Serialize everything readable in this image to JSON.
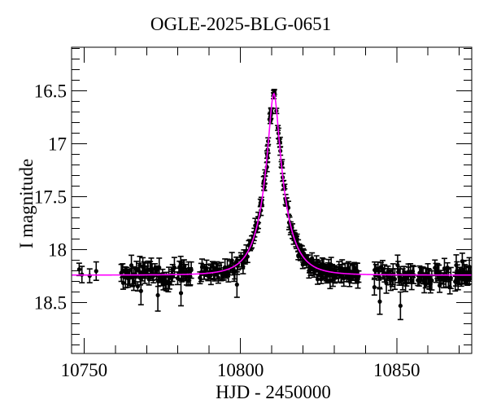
{
  "chart_data": {
    "type": "scatter",
    "title": "OGLE-2025-BLG-0651",
    "xlabel": "HJD - 2450000",
    "ylabel": "I magnitude",
    "x_range": [
      10746,
      10874
    ],
    "y_range": [
      16.09,
      18.98
    ],
    "y_axis_inverted": true,
    "x_major_ticks": [
      10750,
      10800,
      10850
    ],
    "x_minor_step": 10,
    "y_major_ticks": [
      16.5,
      17,
      17.5,
      18,
      18.5
    ],
    "y_major_tick_labels": [
      "16.5",
      "17",
      "17.5",
      "18",
      "18.5"
    ],
    "y_minor_step": 0.1,
    "grid": false,
    "legend": null,
    "colors": {
      "background": "#ffffff",
      "frame": "#000000",
      "text": "#000000",
      "data_points": "#000000",
      "model_curve": "#ff00ff"
    },
    "model": {
      "type": "paczynski-microlensing",
      "t0": 10810.7,
      "tE": 7.0,
      "u0": 0.21,
      "I_baseline": 18.24,
      "I_peak": 16.53
    },
    "random_seed": 17,
    "point_clusters": [
      {
        "t_start": 10747.0,
        "t_end": 10755.5,
        "n": 4,
        "mag_scatter": 0.03,
        "err_min": 0.05,
        "err_max": 0.1
      },
      {
        "t_start": 10761.8,
        "t_end": 10779.0,
        "n": 50,
        "mag_scatter": 0.045,
        "err_min": 0.04,
        "err_max": 0.1
      },
      {
        "t_start": 10779.8,
        "t_end": 10784.5,
        "n": 16,
        "mag_scatter": 0.045,
        "err_min": 0.04,
        "err_max": 0.09
      },
      {
        "t_start": 10787.0,
        "t_end": 10799.5,
        "n": 36,
        "mag_scatter": 0.04,
        "err_min": 0.04,
        "err_max": 0.09
      },
      {
        "t_start": 10800.0,
        "t_end": 10806.0,
        "n": 22,
        "mag_scatter": 0.035,
        "err_min": 0.035,
        "err_max": 0.07
      },
      {
        "t_start": 10806.3,
        "t_end": 10806.9,
        "n": 4,
        "mag_scatter": 0.03,
        "err_min": 0.03,
        "err_max": 0.05
      },
      {
        "t_start": 10807.4,
        "t_end": 10807.9,
        "n": 5,
        "mag_scatter": 0.03,
        "err_min": 0.03,
        "err_max": 0.05
      },
      {
        "t_start": 10808.4,
        "t_end": 10808.9,
        "n": 5,
        "mag_scatter": 0.028,
        "err_min": 0.025,
        "err_max": 0.045
      },
      {
        "t_start": 10809.5,
        "t_end": 10809.9,
        "n": 5,
        "mag_scatter": 0.025,
        "err_min": 0.02,
        "err_max": 0.04
      },
      {
        "t_start": 10810.6,
        "t_end": 10810.9,
        "n": 3,
        "mag_scatter": 0.015,
        "err_min": 0.015,
        "err_max": 0.03
      },
      {
        "t_start": 10811.5,
        "t_end": 10815.0,
        "n": 14,
        "mag_scatter": 0.03,
        "err_min": 0.02,
        "err_max": 0.05
      },
      {
        "t_start": 10815.2,
        "t_end": 10824.0,
        "n": 40,
        "mag_scatter": 0.035,
        "err_min": 0.03,
        "err_max": 0.07
      },
      {
        "t_start": 10824.2,
        "t_end": 10831.0,
        "n": 34,
        "mag_scatter": 0.04,
        "err_min": 0.035,
        "err_max": 0.08
      },
      {
        "t_start": 10831.2,
        "t_end": 10838.0,
        "n": 26,
        "mag_scatter": 0.045,
        "err_min": 0.04,
        "err_max": 0.09
      },
      {
        "t_start": 10842.5,
        "t_end": 10849.5,
        "n": 18,
        "mag_scatter": 0.05,
        "err_min": 0.04,
        "err_max": 0.1
      },
      {
        "t_start": 10850.0,
        "t_end": 10855.5,
        "n": 16,
        "mag_scatter": 0.05,
        "err_min": 0.04,
        "err_max": 0.1
      },
      {
        "t_start": 10856.5,
        "t_end": 10861.5,
        "n": 14,
        "mag_scatter": 0.05,
        "err_min": 0.04,
        "err_max": 0.1
      },
      {
        "t_start": 10862.0,
        "t_end": 10867.5,
        "n": 16,
        "mag_scatter": 0.05,
        "err_min": 0.04,
        "err_max": 0.1
      },
      {
        "t_start": 10868.5,
        "t_end": 10873.7,
        "n": 24,
        "mag_scatter": 0.05,
        "err_min": 0.04,
        "err_max": 0.1
      }
    ],
    "outlier_points": [
      {
        "t": 10768.2,
        "mag": 18.39,
        "err": 0.13
      },
      {
        "t": 10773.6,
        "mag": 18.43,
        "err": 0.15
      },
      {
        "t": 10781.0,
        "mag": 18.41,
        "err": 0.12
      },
      {
        "t": 10798.9,
        "mag": 18.33,
        "err": 0.12
      },
      {
        "t": 10844.6,
        "mag": 18.49,
        "err": 0.12
      },
      {
        "t": 10851.2,
        "mag": 18.53,
        "err": 0.13
      }
    ]
  }
}
